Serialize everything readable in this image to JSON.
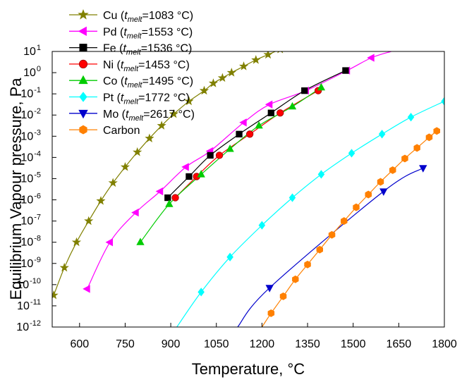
{
  "chart_data": {
    "type": "line",
    "title": "",
    "xlabel": "Temperature, °C",
    "ylabel": "Equilibrium Vapour pressure, Pa",
    "x_ticks": [
      600,
      750,
      900,
      1050,
      1200,
      1350,
      1500,
      1650,
      1800
    ],
    "y_ticks": [
      -12,
      -11,
      -10,
      -9,
      -8,
      -7,
      -6,
      -5,
      -4,
      -3,
      -2,
      -1,
      0,
      1
    ],
    "y_tick_base": "10",
    "xlim": [
      510,
      1800
    ],
    "ylim_log10": [
      -12,
      1
    ],
    "y_scale": "log",
    "grid": false,
    "legend_position": "top-left",
    "series": [
      {
        "name": "Cu",
        "melt": "1083 °C",
        "color": "#808000",
        "marker": "star",
        "x": [
          515,
          550,
          590,
          630,
          670,
          710,
          750,
          790,
          830,
          870,
          910,
          960,
          1010,
          1040,
          1070,
          1100,
          1140,
          1180,
          1220,
          1260,
          1300,
          1340
        ],
        "y": [
          -10.5,
          -9.2,
          -8.0,
          -7.0,
          -6.05,
          -5.2,
          -4.45,
          -3.75,
          -3.1,
          -2.5,
          -1.95,
          -1.35,
          -0.85,
          -0.5,
          -0.25,
          0.0,
          0.3,
          0.6,
          0.85,
          1.1,
          1.35,
          1.65
        ],
        "curve_end": [
          1400,
          2.0
        ]
      },
      {
        "name": "Pd",
        "melt": "1553 °C",
        "color": "#ff00ff",
        "marker": "triangle-left",
        "x": [
          625,
          700,
          785,
          865,
          950,
          1030,
          1140,
          1225,
          1345,
          1480,
          1560
        ],
        "y": [
          -10.2,
          -8.0,
          -6.6,
          -5.6,
          -4.45,
          -3.7,
          -2.35,
          -1.5,
          -0.85,
          0.1,
          0.7
        ],
        "curve_end": [
          1625,
          1.0
        ]
      },
      {
        "name": "Fe",
        "melt": "1536 °C",
        "color": "#000000",
        "marker": "square",
        "x": [
          890,
          960,
          1030,
          1125,
          1230,
          1340,
          1475
        ],
        "y": [
          -5.9,
          -4.9,
          -3.9,
          -2.9,
          -1.9,
          -0.85,
          0.1
        ],
        "curve_end": [
          1475,
          0.1
        ]
      },
      {
        "name": "Ni",
        "melt": "1453 °C",
        "color": "#ff0000",
        "marker": "circle",
        "x": [
          915,
          985,
          1060,
          1160,
          1260,
          1385
        ],
        "y": [
          -5.9,
          -4.9,
          -3.9,
          -2.9,
          -1.9,
          -0.85
        ],
        "curve_end": [
          1400,
          -0.75
        ]
      },
      {
        "name": "Co",
        "melt": "1495 °C",
        "color": "#00cc00",
        "marker": "triangle-up",
        "x": [
          800,
          895,
          1000,
          1095,
          1190,
          1300,
          1395
        ],
        "y": [
          -8.0,
          -6.2,
          -4.8,
          -3.6,
          -2.5,
          -1.6,
          -0.7
        ],
        "curve_end": [
          1395,
          -0.7
        ]
      },
      {
        "name": "Pt",
        "melt": "1772 °C",
        "color": "#00ffff",
        "marker": "diamond",
        "x": [
          1000,
          1095,
          1200,
          1300,
          1395,
          1495,
          1595,
          1690,
          1800
        ],
        "y": [
          -10.35,
          -8.7,
          -7.2,
          -5.9,
          -4.8,
          -3.8,
          -2.9,
          -2.1,
          -1.35
        ],
        "curve_start": [
          920,
          -12.0
        ]
      },
      {
        "name": "Mo",
        "melt": "2617 °C",
        "color": "#0000cc",
        "marker": "triangle-down",
        "x": [
          1225,
          1600,
          1730
        ],
        "y": [
          -10.15,
          -5.6,
          -4.5
        ],
        "curve_start": [
          1120,
          -12.0
        ]
      },
      {
        "name": "Carbon",
        "melt": "",
        "color": "#ff8000",
        "marker": "hexagon",
        "x": [
          1230,
          1270,
          1310,
          1350,
          1390,
          1430,
          1470,
          1510,
          1550,
          1590,
          1630,
          1670,
          1710,
          1750,
          1775
        ],
        "y": [
          -11.35,
          -10.55,
          -9.75,
          -9.05,
          -8.35,
          -7.65,
          -7.0,
          -6.35,
          -5.75,
          -5.15,
          -4.6,
          -4.05,
          -3.55,
          -3.05,
          -2.75
        ],
        "curve_start": [
          1200,
          -12.0
        ]
      }
    ]
  }
}
